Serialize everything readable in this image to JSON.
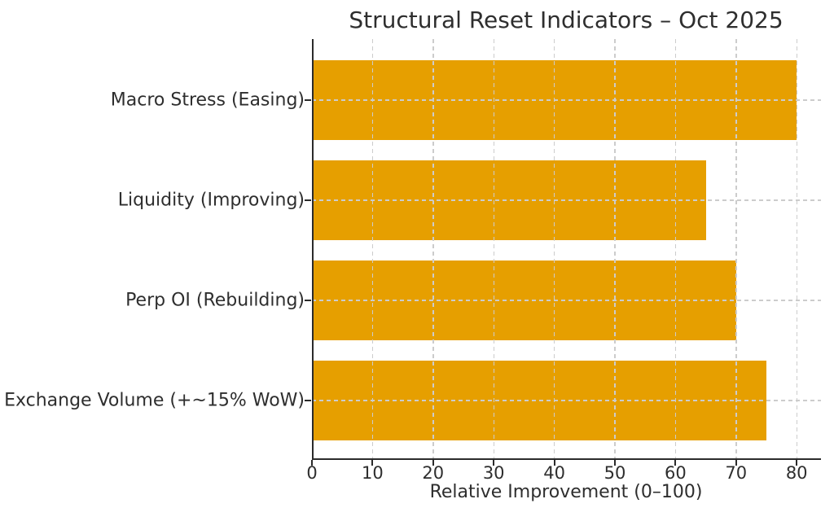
{
  "chart_data": {
    "type": "bar",
    "orientation": "horizontal",
    "title": "Structural Reset Indicators – Oct 2025",
    "categories": [
      "Macro Stress (Easing)",
      "Liquidity (Improving)",
      "Perp OI (Rebuilding)",
      "Exchange Volume (+~15% WoW)"
    ],
    "values": [
      80,
      65,
      70,
      75
    ],
    "xlabel": "Relative Improvement (0–100)",
    "ylabel": "",
    "xticks": [
      0,
      10,
      20,
      30,
      40,
      50,
      60,
      70,
      80
    ],
    "xlim": [
      0,
      84
    ],
    "grid": true,
    "grid_style": "dashed",
    "legend": "none",
    "colors": {
      "bar": "#E69F00",
      "grid": "#cccccc",
      "axis": "#2b2b2b",
      "text": "#2e2e2e",
      "background": "#ffffff"
    }
  }
}
